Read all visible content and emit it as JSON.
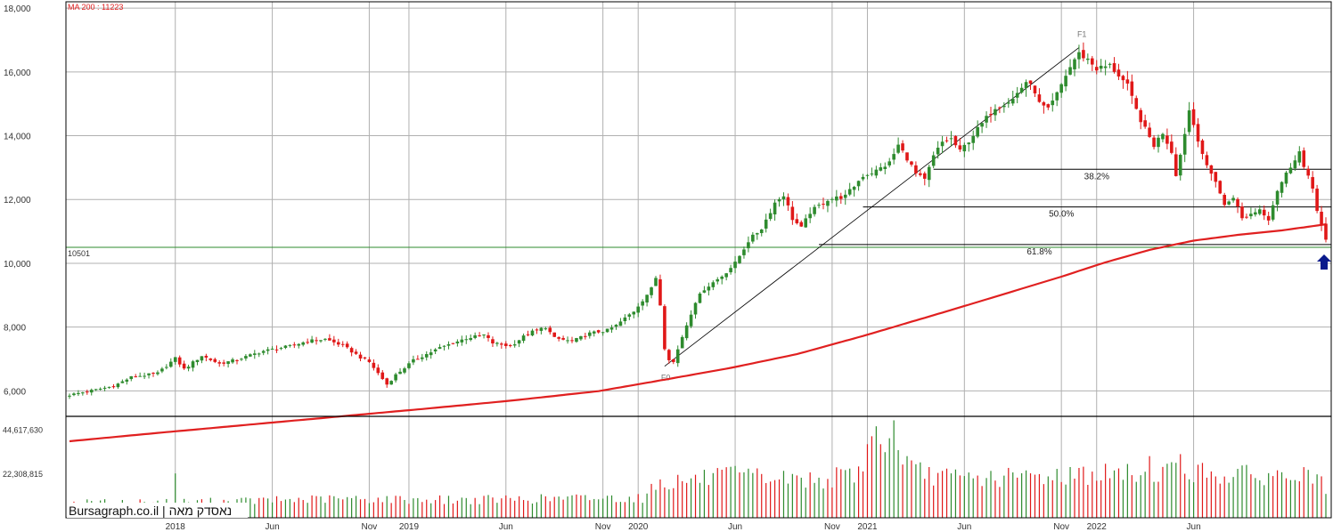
{
  "chart_data": {
    "type": "candlestick",
    "indicator_label": "MA 200 : 11223",
    "price_axis": {
      "ylim": [
        5200,
        18200
      ],
      "ticks": [
        6000,
        8000,
        10000,
        12000,
        14000,
        16000,
        18000
      ],
      "tick_labels": [
        "6,000",
        "8,000",
        "10,000",
        "12,000",
        "14,000",
        "16,000",
        "18,000"
      ]
    },
    "volume_axis": {
      "ylim": [
        0,
        51000000
      ],
      "ticks": [
        22308815,
        44617630
      ],
      "tick_labels": [
        "22,308,815",
        "44,617,630"
      ]
    },
    "x_axis": {
      "labels": [
        {
          "label": "2018",
          "week": 24
        },
        {
          "label": "Jun",
          "week": 46
        },
        {
          "label": "Nov",
          "week": 68
        },
        {
          "label": "2019",
          "week": 77
        },
        {
          "label": "Jun",
          "week": 99
        },
        {
          "label": "Nov",
          "week": 121
        },
        {
          "label": "2020",
          "week": 129
        },
        {
          "label": "Jun",
          "week": 151
        },
        {
          "label": "Nov",
          "week": 173
        },
        {
          "label": "2021",
          "week": 181
        },
        {
          "label": "Jun",
          "week": 203
        },
        {
          "label": "Nov",
          "week": 225
        },
        {
          "label": "2022",
          "week": 233
        },
        {
          "label": "Jun",
          "week": 255
        }
      ],
      "n_weeks": 285
    },
    "support_line": {
      "value": 10501,
      "label": "10501",
      "color": "#2e8b2e"
    },
    "fibonacci": {
      "low_label": "F0",
      "low": 6771,
      "low_week": 135,
      "high_label": "F1",
      "high": 16764,
      "high_week": 229,
      "levels": [
        {
          "label": "38.2%",
          "value": 12947,
          "start_week": 196
        },
        {
          "label": "50.0%",
          "value": 11767,
          "start_week": 180
        },
        {
          "label": "61.8%",
          "value": 10588,
          "start_week": 170
        }
      ]
    },
    "price_anchors": [
      [
        0,
        5870
      ],
      [
        10,
        6150
      ],
      [
        14,
        6430
      ],
      [
        20,
        6550
      ],
      [
        24,
        7020
      ],
      [
        26,
        6680
      ],
      [
        30,
        7100
      ],
      [
        34,
        6850
      ],
      [
        38,
        6980
      ],
      [
        44,
        7250
      ],
      [
        50,
        7400
      ],
      [
        54,
        7560
      ],
      [
        58,
        7620
      ],
      [
        62,
        7420
      ],
      [
        66,
        7050
      ],
      [
        68,
        6900
      ],
      [
        72,
        6200
      ],
      [
        74,
        6500
      ],
      [
        78,
        6950
      ],
      [
        84,
        7350
      ],
      [
        90,
        7650
      ],
      [
        94,
        7750
      ],
      [
        96,
        7500
      ],
      [
        100,
        7400
      ],
      [
        104,
        7800
      ],
      [
        108,
        8000
      ],
      [
        110,
        7650
      ],
      [
        114,
        7550
      ],
      [
        118,
        7800
      ],
      [
        122,
        7900
      ],
      [
        124,
        8050
      ],
      [
        128,
        8500
      ],
      [
        132,
        9200
      ],
      [
        133,
        9550
      ],
      [
        134,
        8700
      ],
      [
        135,
        7350
      ],
      [
        136,
        7000
      ],
      [
        137,
        6900
      ],
      [
        139,
        7700
      ],
      [
        142,
        8800
      ],
      [
        144,
        9200
      ],
      [
        148,
        9600
      ],
      [
        151,
        10000
      ],
      [
        154,
        10700
      ],
      [
        157,
        11100
      ],
      [
        160,
        11900
      ],
      [
        162,
        12150
      ],
      [
        164,
        11400
      ],
      [
        166,
        11100
      ],
      [
        168,
        11600
      ],
      [
        172,
        12000
      ],
      [
        176,
        12100
      ],
      [
        180,
        12750
      ],
      [
        183,
        12900
      ],
      [
        186,
        13150
      ],
      [
        188,
        13700
      ],
      [
        190,
        13300
      ],
      [
        192,
        12800
      ],
      [
        194,
        12600
      ],
      [
        196,
        13350
      ],
      [
        198,
        13800
      ],
      [
        200,
        13900
      ],
      [
        202,
        13500
      ],
      [
        206,
        14200
      ],
      [
        210,
        14900
      ],
      [
        214,
        15150
      ],
      [
        217,
        15700
      ],
      [
        219,
        15400
      ],
      [
        220,
        15000
      ],
      [
        222,
        14800
      ],
      [
        224,
        15300
      ],
      [
        226,
        15900
      ],
      [
        228,
        16400
      ],
      [
        229,
        16570
      ],
      [
        231,
        16400
      ],
      [
        233,
        16100
      ],
      [
        236,
        16200
      ],
      [
        238,
        15900
      ],
      [
        240,
        15550
      ],
      [
        242,
        14800
      ],
      [
        244,
        14200
      ],
      [
        246,
        13700
      ],
      [
        248,
        14100
      ],
      [
        250,
        13500
      ],
      [
        251,
        12800
      ],
      [
        252,
        13400
      ],
      [
        254,
        14800
      ],
      [
        256,
        13900
      ],
      [
        258,
        13000
      ],
      [
        260,
        12600
      ],
      [
        262,
        11800
      ],
      [
        264,
        12100
      ],
      [
        266,
        11400
      ],
      [
        268,
        11550
      ],
      [
        270,
        11700
      ],
      [
        272,
        11400
      ],
      [
        274,
        12300
      ],
      [
        276,
        12800
      ],
      [
        278,
        13300
      ],
      [
        279,
        13500
      ],
      [
        280,
        13000
      ],
      [
        282,
        12350
      ],
      [
        283,
        11700
      ],
      [
        284,
        11200
      ],
      [
        285,
        10700
      ]
    ],
    "ma200_anchors": [
      [
        0,
        4420
      ],
      [
        20,
        4680
      ],
      [
        40,
        4930
      ],
      [
        60,
        5180
      ],
      [
        80,
        5430
      ],
      [
        100,
        5690
      ],
      [
        120,
        5990
      ],
      [
        135,
        6350
      ],
      [
        150,
        6720
      ],
      [
        165,
        7150
      ],
      [
        180,
        7720
      ],
      [
        195,
        8330
      ],
      [
        210,
        8950
      ],
      [
        225,
        9580
      ],
      [
        235,
        10030
      ],
      [
        245,
        10420
      ],
      [
        255,
        10710
      ],
      [
        265,
        10890
      ],
      [
        275,
        11030
      ],
      [
        285,
        11223
      ]
    ],
    "volume_base": [
      [
        0,
        7500000
      ],
      [
        30,
        8000000
      ],
      [
        60,
        9500000
      ],
      [
        90,
        9000000
      ],
      [
        120,
        10000000
      ],
      [
        131,
        10000000
      ],
      [
        132,
        17000000
      ],
      [
        140,
        19000000
      ],
      [
        150,
        21000000
      ],
      [
        160,
        20000000
      ],
      [
        170,
        19000000
      ],
      [
        176,
        21000000
      ],
      [
        184,
        28000000
      ],
      [
        190,
        24000000
      ],
      [
        200,
        20000000
      ],
      [
        210,
        20000000
      ],
      [
        220,
        21000000
      ],
      [
        230,
        22000000
      ],
      [
        240,
        22000000
      ],
      [
        250,
        24000000
      ],
      [
        260,
        22000000
      ],
      [
        270,
        21000000
      ],
      [
        285,
        21000000
      ]
    ],
    "volume_spikes": [
      [
        24,
        22300000
      ],
      [
        181,
        37000000
      ],
      [
        182,
        41000000
      ],
      [
        183,
        46000000
      ],
      [
        184,
        37000000
      ],
      [
        185,
        33000000
      ],
      [
        186,
        40000000
      ],
      [
        187,
        49000000
      ],
      [
        188,
        34000000
      ],
      [
        190,
        31000000
      ],
      [
        245,
        31000000
      ],
      [
        252,
        32000000
      ],
      [
        285,
        12000000
      ]
    ],
    "colors": {
      "up": "#2e8b2e",
      "down": "#e01818",
      "ma": "#e02020",
      "grid": "#b0b0b0",
      "arrow": "#0a1a8c"
    }
  },
  "watermark": "Bursagraph.co.il | נאסדק מאה"
}
